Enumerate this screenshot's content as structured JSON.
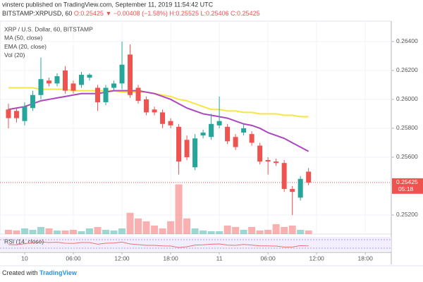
{
  "header": {
    "published": "vinsterc published on TradingView.com, September 11, 2019 11:54:42 UTC",
    "symbol": "BITSTAMP:XRPUSD, 60",
    "open": "O:0.25425",
    "change": "▼ −0.00408 (−1.58%)",
    "high": "H:0.25525",
    "low": "L:0.25406",
    "close": "C:0.25425"
  },
  "chart_data": {
    "type": "candlestick",
    "legend": [
      "XRP / U.S. Dollar, 60, BITSTAMP",
      "MA (50, close)",
      "EMA (20, close)",
      "Vol (20)"
    ],
    "x": [
      -2,
      -1,
      0,
      1,
      2,
      3,
      4,
      5,
      6,
      7,
      8,
      9,
      10,
      11,
      12,
      13,
      14,
      15,
      16,
      17,
      18,
      19,
      20,
      21,
      22,
      23,
      24,
      25,
      26,
      27,
      28,
      29,
      30,
      31,
      32,
      33,
      34,
      35
    ],
    "open": [
      0.2593,
      0.2592,
      0.2585,
      0.2594,
      0.2603,
      0.2613,
      0.2611,
      0.262,
      0.2611,
      0.261,
      0.2615,
      0.2608,
      0.2598,
      0.2608,
      0.2611,
      0.2631,
      0.2608,
      0.26,
      0.2593,
      0.2591,
      0.2585,
      0.2581,
      0.2572,
      0.2553,
      0.2575,
      0.2574,
      0.2582,
      0.2581,
      0.2574,
      0.2577,
      0.2576,
      0.2568,
      0.2558,
      0.2557,
      0.2556,
      0.2538,
      0.2532,
      0.255
    ],
    "high": [
      0.2597,
      0.2594,
      0.2598,
      0.2606,
      0.2629,
      0.2615,
      0.2618,
      0.2623,
      0.2613,
      0.2619,
      0.2618,
      0.261,
      0.261,
      0.2613,
      0.264,
      0.2638,
      0.261,
      0.2602,
      0.2595,
      0.2593,
      0.2587,
      0.2583,
      0.2575,
      0.2576,
      0.2579,
      0.259,
      0.2602,
      0.2583,
      0.2576,
      0.2583,
      0.2578,
      0.257,
      0.256,
      0.2559,
      0.2558,
      0.254,
      0.2547,
      0.25525
    ],
    "low": [
      0.258,
      0.2584,
      0.2582,
      0.2592,
      0.26,
      0.2609,
      0.2609,
      0.2604,
      0.2604,
      0.2608,
      0.2613,
      0.2592,
      0.2596,
      0.2606,
      0.2607,
      0.2601,
      0.2597,
      0.2589,
      0.2589,
      0.258,
      0.258,
      0.2548,
      0.2558,
      0.2551,
      0.2573,
      0.2572,
      0.258,
      0.2569,
      0.2565,
      0.2575,
      0.2568,
      0.2555,
      0.2548,
      0.2554,
      0.2536,
      0.252,
      0.253,
      0.25406
    ],
    "close": [
      0.2587,
      0.2587,
      0.2595,
      0.2603,
      0.2614,
      0.2611,
      0.2616,
      0.2606,
      0.2606,
      0.2617,
      0.2617,
      0.2598,
      0.2608,
      0.2611,
      0.2624,
      0.2603,
      0.2599,
      0.2591,
      0.2591,
      0.2583,
      0.2582,
      0.2557,
      0.256,
      0.2573,
      0.2577,
      0.2583,
      0.2585,
      0.2571,
      0.2567,
      0.258,
      0.257,
      0.2557,
      0.2557,
      0.2556,
      0.2538,
      0.2536,
      0.2545,
      0.25425
    ],
    "volume": [
      6,
      5,
      8,
      6,
      10,
      8,
      5,
      5,
      6,
      4,
      8,
      10,
      6,
      5,
      8,
      30,
      22,
      18,
      12,
      8,
      18,
      70,
      22,
      8,
      5,
      4,
      4,
      12,
      10,
      6,
      10,
      5,
      6,
      14,
      10,
      12,
      6,
      5
    ],
    "vol_lim": [
      0,
      300
    ],
    "ma": [
      0.2608,
      0.2608,
      0.2608,
      0.2608,
      0.2607,
      0.2607,
      0.2607,
      0.2607,
      0.2606,
      0.2606,
      0.2606,
      0.2606,
      0.2606,
      0.2606,
      0.2605,
      0.2605,
      0.2605,
      0.2605,
      0.2604,
      0.2603,
      0.2602,
      0.26,
      0.2599,
      0.2597,
      0.2595,
      0.2593,
      0.2593,
      0.2592,
      0.2592,
      0.2591,
      0.2591,
      0.259,
      0.259,
      0.259,
      0.2589,
      0.2589,
      0.2588,
      0.2588
    ],
    "ma_color": "#f5e642",
    "ema": [
      0.2593,
      0.2594,
      0.2595,
      0.2597,
      0.2599,
      0.26,
      0.2601,
      0.2602,
      0.2603,
      0.2604,
      0.2604,
      0.2604,
      0.2605,
      0.2606,
      0.2606,
      0.2606,
      0.2606,
      0.2605,
      0.2604,
      0.2602,
      0.26,
      0.2597,
      0.2594,
      0.2592,
      0.259,
      0.2589,
      0.2588,
      0.2587,
      0.2585,
      0.2583,
      0.2582,
      0.258,
      0.2577,
      0.2575,
      0.2573,
      0.257,
      0.2567,
      0.2564
    ],
    "ema_color": "#ab47bc",
    "up_color": "#26a69a",
    "down_color": "#ef5350",
    "rsi_label": "RSI (14, close)",
    "rsi": [
      45,
      44,
      52,
      58,
      64,
      60,
      62,
      55,
      54,
      60,
      60,
      48,
      55,
      57,
      63,
      50,
      45,
      40,
      40,
      36,
      35,
      25,
      30,
      42,
      44,
      48,
      50,
      42,
      40,
      46,
      42,
      36,
      36,
      35,
      28,
      28,
      38,
      36
    ],
    "rsi_ylim": [
      0,
      100
    ],
    "rsi_color": "#e57373",
    "last_price": 0.25425,
    "countdown": "05:18",
    "ylim": [
      0.25078,
      0.26541
    ],
    "yticks": [
      {
        "value": 0.264,
        "label": "0.26400"
      },
      {
        "value": 0.262,
        "label": "0.26200"
      },
      {
        "value": 0.26,
        "label": "0.26000"
      },
      {
        "value": 0.258,
        "label": "0.25800"
      },
      {
        "value": 0.256,
        "label": "0.25600"
      },
      {
        "value": 0.252,
        "label": "0.25200"
      }
    ],
    "xlim": [
      -3.04,
      45.2
    ],
    "xticks": [
      {
        "value": 0,
        "label": "10"
      },
      {
        "value": 6,
        "label": "06:00"
      },
      {
        "value": 12,
        "label": "12:00"
      },
      {
        "value": 18,
        "label": "18:00"
      },
      {
        "value": 24,
        "label": "11"
      },
      {
        "value": 30,
        "label": "06:00"
      },
      {
        "value": 36,
        "label": "12:00"
      },
      {
        "value": 42,
        "label": "18:00"
      }
    ],
    "grid": true
  },
  "footer": {
    "prefix": "Created with",
    "brand": "TradingView"
  }
}
